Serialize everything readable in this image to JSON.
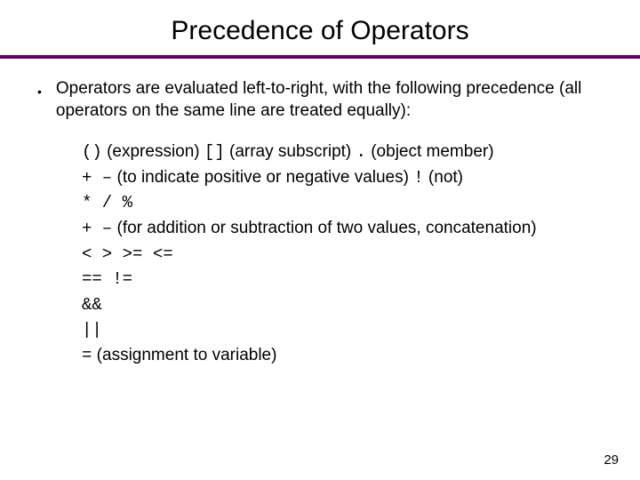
{
  "colors": {
    "rule": "#660066",
    "background": "#ffffff",
    "text": "#000000"
  },
  "title": "Precedence of Operators",
  "bullet": "Operators are evaluated left-to-right, with the following precedence (all operators on the same line are treated equally):",
  "rows": [
    {
      "p1": "()",
      "d1": " (expression)  ",
      "p2": "[]",
      "d2": " (array subscript)   ",
      "p3": ".",
      "d3": " (object member)"
    },
    {
      "p1": "+  –",
      "d1": " (to indicate positive or negative values)  ",
      "p2": "!",
      "d2": " (not)",
      "p3": "",
      "d3": ""
    },
    {
      "p1": "*  /  %",
      "d1": "",
      "p2": "",
      "d2": "",
      "p3": "",
      "d3": ""
    },
    {
      "p1": "+  –",
      "d1": " (for addition or subtraction of two values, concatenation)",
      "p2": "",
      "d2": "",
      "p3": "",
      "d3": ""
    },
    {
      "p1": "<  >  >=  <=",
      "d1": "",
      "p2": "",
      "d2": "",
      "p3": "",
      "d3": ""
    },
    {
      "p1": "==  !=",
      "d1": "",
      "p2": "",
      "d2": "",
      "p3": "",
      "d3": ""
    },
    {
      "p1": "&&",
      "d1": "",
      "p2": "",
      "d2": "",
      "p3": "",
      "d3": ""
    },
    {
      "p1": "||",
      "d1": "",
      "p2": "",
      "d2": "",
      "p3": "",
      "d3": ""
    },
    {
      "p1": "=",
      "d1": " (assignment to variable)",
      "p2": "",
      "d2": "",
      "p3": "",
      "d3": ""
    }
  ],
  "page_number": "29"
}
